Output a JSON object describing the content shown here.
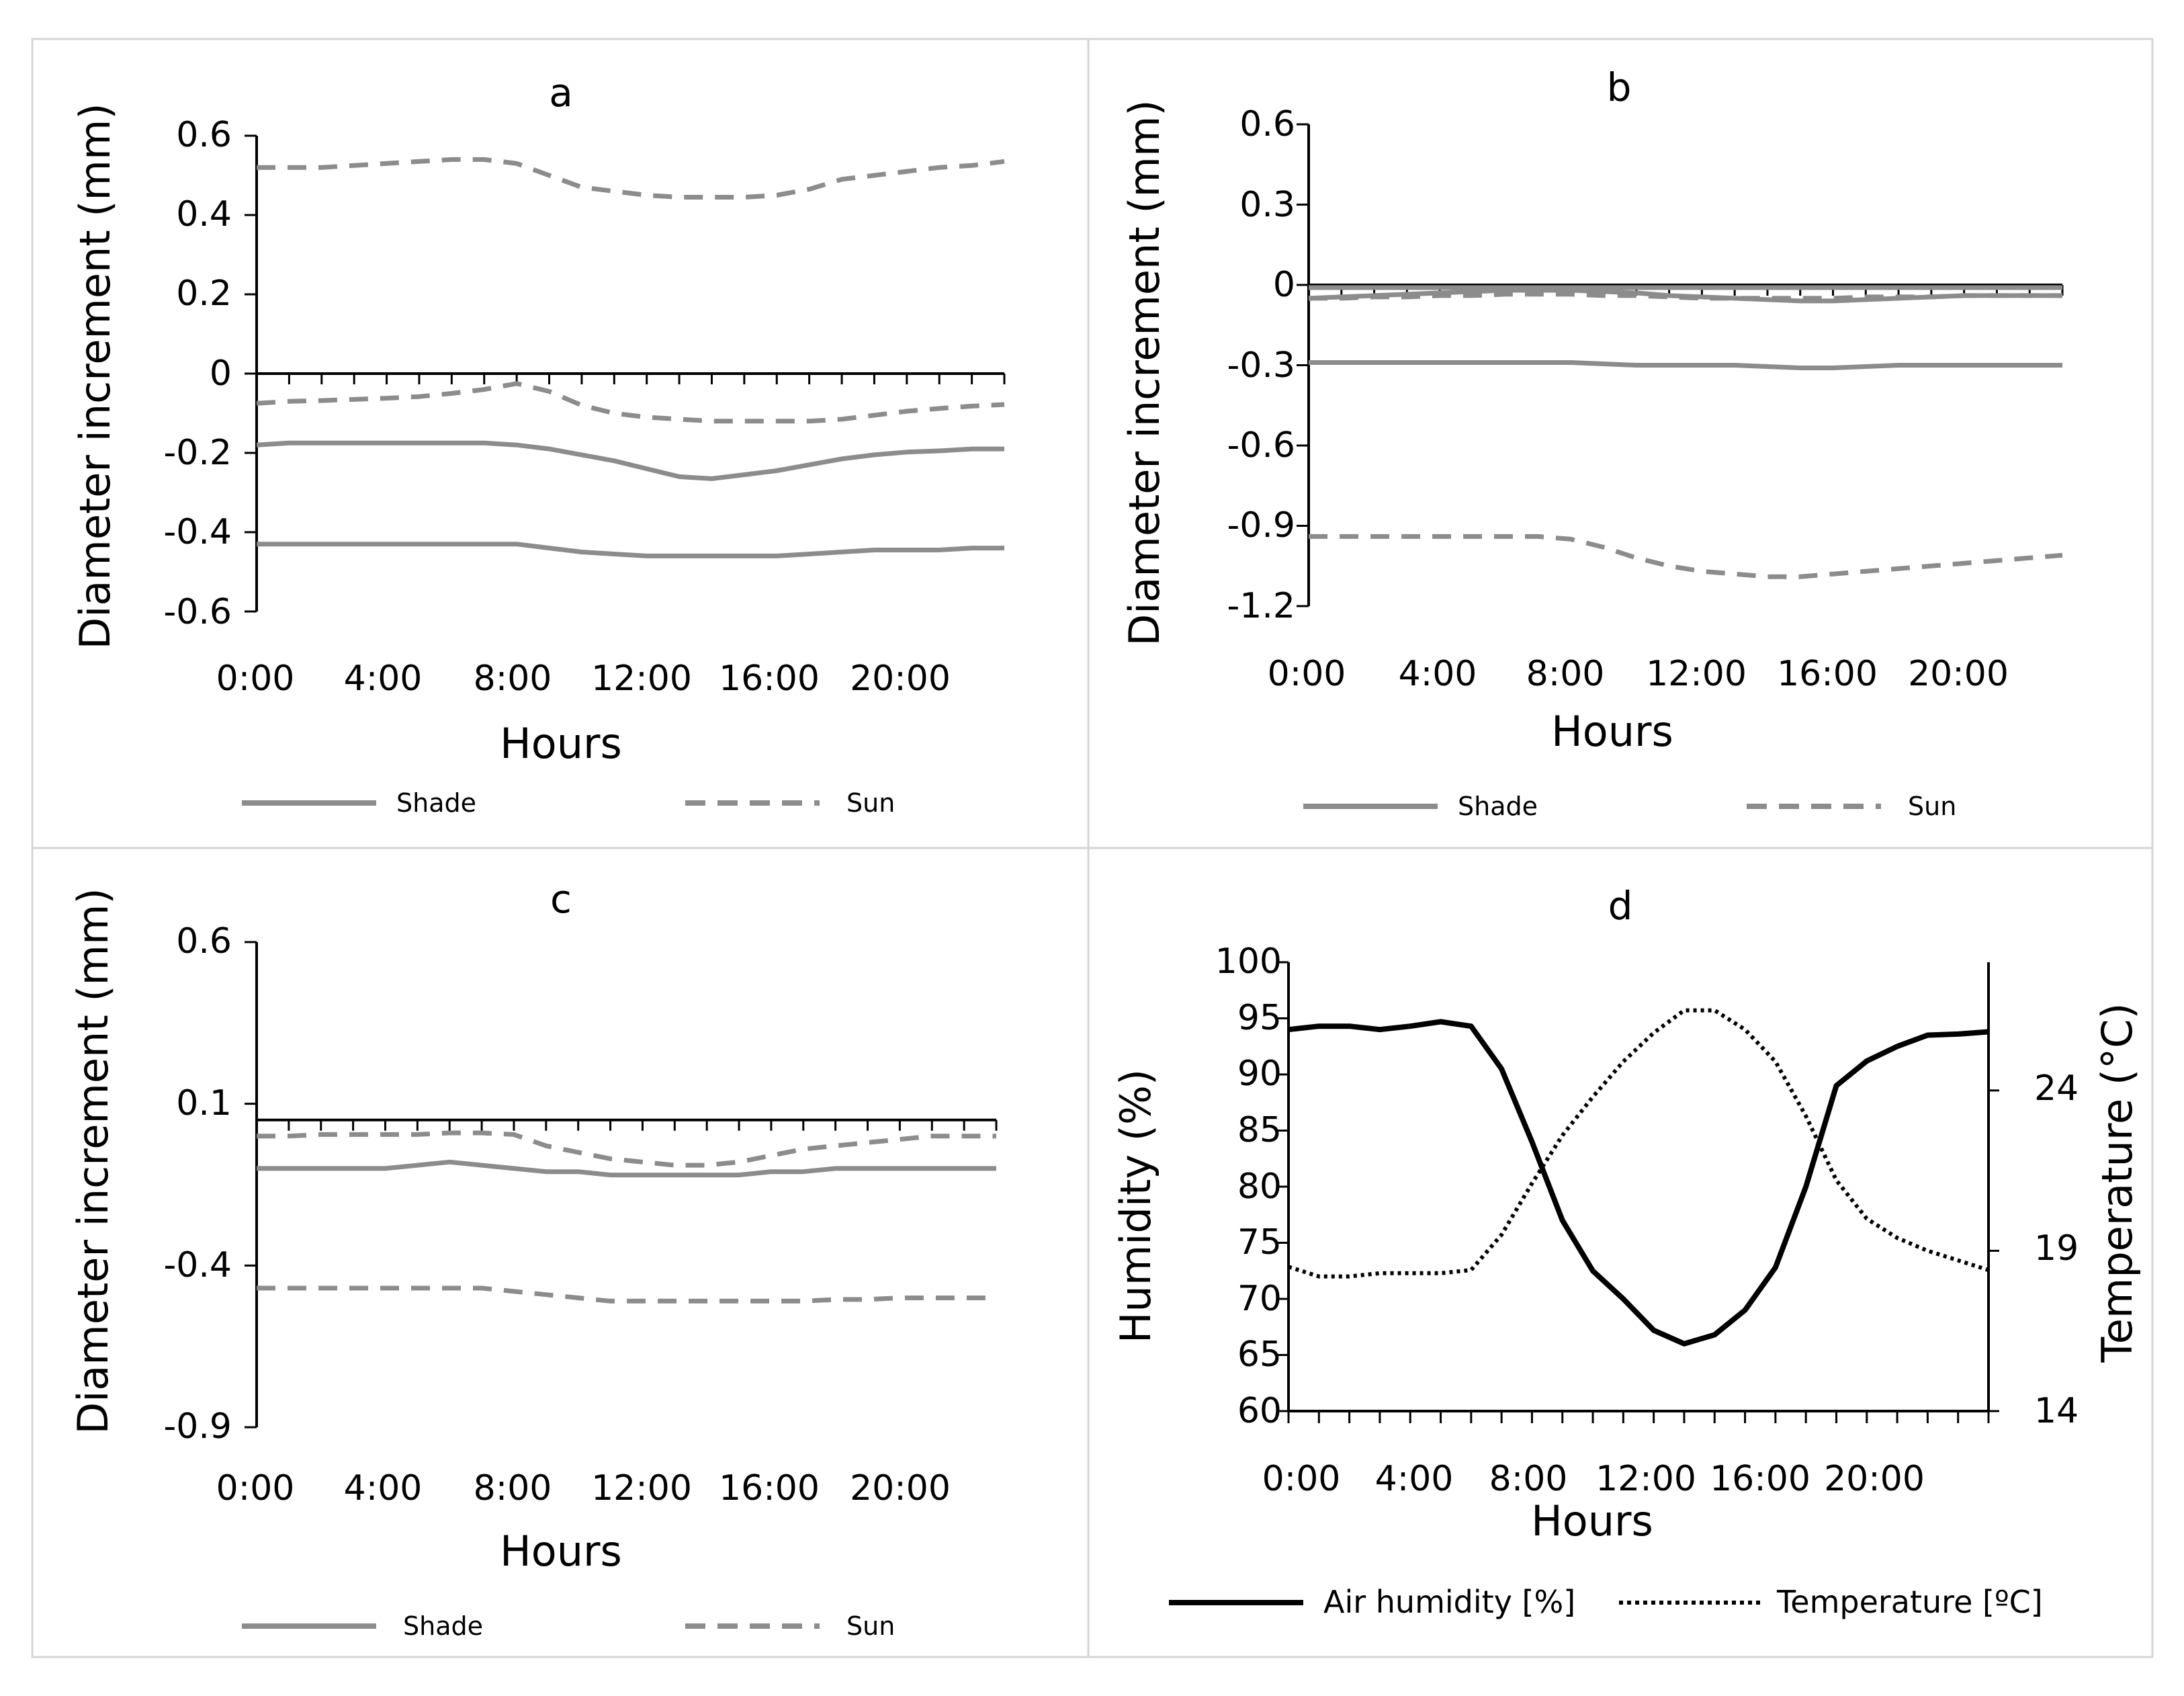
{
  "chart_data": [
    {
      "panel": "a",
      "type": "line",
      "title": "a",
      "xlabel": "Hours",
      "ylabel": "Diameter increment (mm)",
      "x_tick_labels": [
        "0:00",
        "4:00",
        "8:00",
        "12:00",
        "16:00",
        "20:00"
      ],
      "y_tick_labels": [
        "0.6",
        "0.4",
        "0.2",
        "0",
        "-0.2",
        "-0.4",
        "-0.6"
      ],
      "ylim": [
        -0.6,
        0.6
      ],
      "x_hours": [
        0,
        1,
        2,
        3,
        4,
        5,
        6,
        7,
        8,
        9,
        10,
        11,
        12,
        13,
        14,
        15,
        16,
        17,
        18,
        19,
        20,
        21,
        22,
        23
      ],
      "series": [
        {
          "name": "Sun",
          "style": "dashed",
          "values": [
            0.52,
            0.52,
            0.52,
            0.525,
            0.53,
            0.535,
            0.54,
            0.54,
            0.53,
            0.5,
            0.47,
            0.46,
            0.45,
            0.445,
            0.445,
            0.445,
            0.45,
            0.465,
            0.49,
            0.5,
            0.51,
            0.52,
            0.525,
            0.535
          ]
        },
        {
          "name": "Sun",
          "style": "dashed",
          "values": [
            -0.075,
            -0.07,
            -0.068,
            -0.065,
            -0.062,
            -0.058,
            -0.05,
            -0.04,
            -0.025,
            -0.045,
            -0.08,
            -0.1,
            -0.11,
            -0.115,
            -0.12,
            -0.12,
            -0.12,
            -0.12,
            -0.115,
            -0.105,
            -0.095,
            -0.088,
            -0.082,
            -0.078
          ]
        },
        {
          "name": "Shade",
          "style": "solid",
          "values": [
            -0.18,
            -0.175,
            -0.175,
            -0.175,
            -0.175,
            -0.175,
            -0.175,
            -0.175,
            -0.18,
            -0.19,
            -0.205,
            -0.22,
            -0.24,
            -0.26,
            -0.265,
            -0.255,
            -0.245,
            -0.23,
            -0.215,
            -0.205,
            -0.198,
            -0.195,
            -0.19,
            -0.19
          ]
        },
        {
          "name": "Shade",
          "style": "solid",
          "values": [
            -0.43,
            -0.43,
            -0.43,
            -0.43,
            -0.43,
            -0.43,
            -0.43,
            -0.43,
            -0.43,
            -0.44,
            -0.45,
            -0.455,
            -0.46,
            -0.46,
            -0.46,
            -0.46,
            -0.46,
            -0.455,
            -0.45,
            -0.445,
            -0.445,
            -0.445,
            -0.44,
            -0.44
          ]
        }
      ],
      "legend": [
        {
          "label": "Shade",
          "style": "solid"
        },
        {
          "label": "Sun",
          "style": "dashed"
        }
      ]
    },
    {
      "panel": "b",
      "type": "line",
      "title": "b",
      "xlabel": "Hours",
      "ylabel": "Diameter increment (mm)",
      "x_tick_labels": [
        "0:00",
        "4:00",
        "8:00",
        "12:00",
        "16:00",
        "20:00"
      ],
      "y_tick_labels": [
        "0.6",
        "0.3",
        "0",
        "-0.3",
        "-0.6",
        "-0.9",
        "-1.2"
      ],
      "ylim": [
        -1.2,
        0.6
      ],
      "x_hours": [
        0,
        1,
        2,
        3,
        4,
        5,
        6,
        7,
        8,
        9,
        10,
        11,
        12,
        13,
        14,
        15,
        16,
        17,
        18,
        19,
        20,
        21,
        22,
        23
      ],
      "series": [
        {
          "name": "Shade",
          "style": "solid",
          "values": [
            -0.01,
            -0.01,
            -0.01,
            -0.01,
            -0.01,
            -0.01,
            -0.01,
            -0.01,
            -0.01,
            -0.01,
            -0.01,
            -0.01,
            -0.01,
            -0.01,
            -0.01,
            -0.01,
            -0.01,
            -0.01,
            -0.01,
            -0.01,
            -0.01,
            -0.01,
            -0.01,
            -0.01
          ]
        },
        {
          "name": "Shade",
          "style": "solid",
          "values": [
            -0.05,
            -0.045,
            -0.04,
            -0.035,
            -0.03,
            -0.025,
            -0.02,
            -0.02,
            -0.02,
            -0.025,
            -0.03,
            -0.04,
            -0.045,
            -0.05,
            -0.055,
            -0.06,
            -0.06,
            -0.055,
            -0.05,
            -0.045,
            -0.04,
            -0.04,
            -0.04,
            -0.04
          ]
        },
        {
          "name": "Sun",
          "style": "dashed",
          "values": [
            -0.05,
            -0.05,
            -0.045,
            -0.045,
            -0.04,
            -0.04,
            -0.035,
            -0.035,
            -0.035,
            -0.04,
            -0.04,
            -0.045,
            -0.05,
            -0.05,
            -0.05,
            -0.05,
            -0.05,
            -0.045,
            -0.045,
            -0.045,
            -0.04,
            -0.04,
            -0.04,
            -0.04
          ]
        },
        {
          "name": "Shade",
          "style": "solid",
          "values": [
            -0.29,
            -0.29,
            -0.29,
            -0.29,
            -0.29,
            -0.29,
            -0.29,
            -0.29,
            -0.29,
            -0.295,
            -0.3,
            -0.3,
            -0.3,
            -0.3,
            -0.305,
            -0.31,
            -0.31,
            -0.305,
            -0.3,
            -0.3,
            -0.3,
            -0.3,
            -0.3,
            -0.3
          ]
        },
        {
          "name": "Sun",
          "style": "dashed",
          "values": [
            -0.94,
            -0.94,
            -0.94,
            -0.94,
            -0.94,
            -0.94,
            -0.94,
            -0.94,
            -0.95,
            -0.98,
            -1.02,
            -1.05,
            -1.07,
            -1.08,
            -1.09,
            -1.09,
            -1.08,
            -1.07,
            -1.06,
            -1.05,
            -1.04,
            -1.03,
            -1.02,
            -1.01
          ]
        }
      ],
      "legend": [
        {
          "label": "Shade",
          "style": "solid"
        },
        {
          "label": "Sun",
          "style": "dashed"
        }
      ]
    },
    {
      "panel": "c",
      "type": "line",
      "title": "c",
      "xlabel": "Hours",
      "ylabel": "Diameter increment (mm)",
      "x_tick_labels": [
        "0:00",
        "4:00",
        "8:00",
        "12:00",
        "16:00",
        "20:00"
      ],
      "y_tick_labels": [
        "0.6",
        "0.1",
        "-0.4",
        "-0.9"
      ],
      "ylim": [
        -0.9,
        0.6
      ],
      "x_hours": [
        0,
        1,
        2,
        3,
        4,
        5,
        6,
        7,
        8,
        9,
        10,
        11,
        12,
        13,
        14,
        15,
        16,
        17,
        18,
        19,
        20,
        21,
        22,
        23
      ],
      "series": [
        {
          "name": "Sun",
          "style": "dashed",
          "values": [
            0.0,
            0.0,
            0.005,
            0.005,
            0.005,
            0.005,
            0.01,
            0.01,
            0.005,
            -0.03,
            -0.05,
            -0.07,
            -0.08,
            -0.09,
            -0.09,
            -0.08,
            -0.06,
            -0.04,
            -0.03,
            -0.02,
            -0.01,
            0.0,
            0.0,
            0.0
          ]
        },
        {
          "name": "Shade",
          "style": "solid",
          "values": [
            -0.1,
            -0.1,
            -0.1,
            -0.1,
            -0.1,
            -0.09,
            -0.08,
            -0.09,
            -0.1,
            -0.11,
            -0.11,
            -0.12,
            -0.12,
            -0.12,
            -0.12,
            -0.12,
            -0.11,
            -0.11,
            -0.1,
            -0.1,
            -0.1,
            -0.1,
            -0.1,
            -0.1
          ]
        },
        {
          "name": "Sun",
          "style": "dashed",
          "values": [
            -0.47,
            -0.47,
            -0.47,
            -0.47,
            -0.47,
            -0.47,
            -0.47,
            -0.47,
            -0.48,
            -0.49,
            -0.5,
            -0.51,
            -0.51,
            -0.51,
            -0.51,
            -0.51,
            -0.51,
            -0.51,
            -0.505,
            -0.505,
            -0.5,
            -0.5,
            -0.5,
            -0.5
          ]
        }
      ],
      "legend": [
        {
          "label": "Shade",
          "style": "solid"
        },
        {
          "label": "Sun",
          "style": "dashed"
        }
      ]
    },
    {
      "panel": "d",
      "type": "line",
      "title": "d",
      "xlabel": "Hours",
      "ylabel": "Humidity (%)",
      "y2label": "Temperature (°C)",
      "x_tick_labels": [
        "0:00",
        "4:00",
        "8:00",
        "12:00",
        "16:00",
        "20:00"
      ],
      "y_tick_labels": [
        "100",
        "95",
        "90",
        "85",
        "80",
        "75",
        "70",
        "65",
        "60"
      ],
      "y2_tick_labels": [
        "24",
        "19",
        "14"
      ],
      "ylim": [
        60,
        100
      ],
      "y2lim": [
        14,
        28
      ],
      "x_hours": [
        0,
        1,
        2,
        3,
        4,
        5,
        6,
        7,
        8,
        9,
        10,
        11,
        12,
        13,
        14,
        15,
        16,
        17,
        18,
        19,
        20,
        21,
        22,
        23
      ],
      "series": [
        {
          "name": "Air humidity [%]",
          "style": "solid",
          "axis": "left",
          "values": [
            94,
            94.3,
            94.3,
            94,
            94.3,
            94.7,
            94.3,
            90.5,
            84,
            77,
            72.5,
            70,
            67.2,
            66,
            66.8,
            69,
            72.8,
            80,
            89,
            91.2,
            92.5,
            93.5,
            93.6,
            93.8
          ]
        },
        {
          "name": "Temperature [°C]",
          "style": "dotted",
          "axis": "right",
          "values": [
            18.5,
            18.2,
            18.2,
            18.3,
            18.3,
            18.3,
            18.4,
            19.5,
            21.1,
            22.6,
            23.8,
            24.9,
            25.8,
            26.5,
            26.5,
            25.9,
            24.9,
            23.2,
            21.2,
            20.0,
            19.4,
            19.0,
            18.7,
            18.4
          ]
        }
      ],
      "legend": [
        {
          "label": "Air humidity [%]",
          "style": "solid"
        },
        {
          "label": "Temperature [ºC]",
          "style": "dotted"
        }
      ]
    }
  ]
}
